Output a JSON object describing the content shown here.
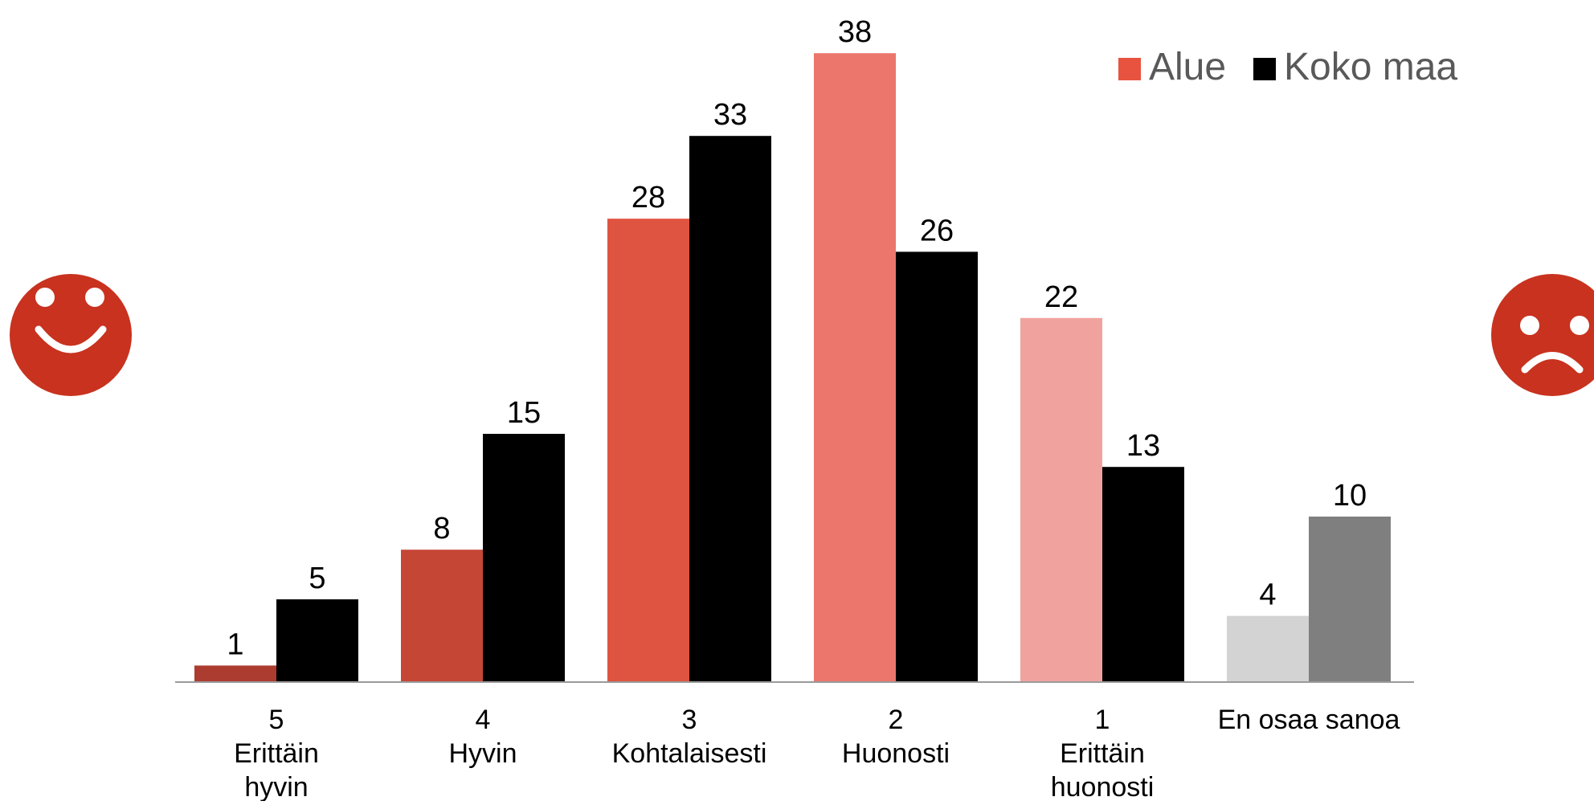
{
  "chart_data": {
    "type": "bar",
    "title": "",
    "xlabel": "",
    "ylabel": "",
    "ylim": [
      0,
      38
    ],
    "grid": false,
    "legend_position": "top-right",
    "categories": [
      [
        "5",
        "Erittäin",
        "hyvin"
      ],
      [
        "4",
        "Hyvin"
      ],
      [
        "3",
        "Kohtalaisesti"
      ],
      [
        "2",
        "Huonosti"
      ],
      [
        "1",
        "Erittäin",
        "huonosti"
      ],
      [
        "En osaa sanoa"
      ]
    ],
    "series": [
      {
        "name": "Alue",
        "values": [
          1,
          8,
          28,
          38,
          22,
          4
        ],
        "colors": [
          "#ab3c2f",
          "#c64636",
          "#df5440",
          "#ec766b",
          "#f0a39e",
          "#d3d3d3"
        ]
      },
      {
        "name": "Koko maa",
        "values": [
          5,
          15,
          33,
          26,
          13,
          10
        ],
        "colors": [
          "#000000",
          "#000000",
          "#000000",
          "#000000",
          "#000000",
          "#7f7f7f"
        ]
      }
    ],
    "legend": [
      {
        "label": "Alue",
        "color": "#e8533f"
      },
      {
        "label": "Koko maa",
        "color": "#000000"
      }
    ],
    "icons": {
      "left": {
        "name": "happy-face-icon",
        "color": "#c8321f"
      },
      "right": {
        "name": "sad-face-icon",
        "color": "#c8321f"
      }
    }
  }
}
